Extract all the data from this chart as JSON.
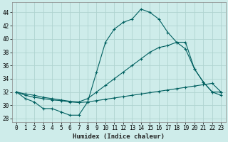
{
  "xlabel": "Humidex (Indice chaleur)",
  "bg_color": "#ceecea",
  "grid_color": "#b0d4d0",
  "line_color": "#006060",
  "xlim": [
    -0.5,
    23.5
  ],
  "ylim": [
    27.5,
    45.5
  ],
  "xticks": [
    0,
    1,
    2,
    3,
    4,
    5,
    6,
    7,
    8,
    9,
    10,
    11,
    12,
    13,
    14,
    15,
    16,
    17,
    18,
    19,
    20,
    21,
    22,
    23
  ],
  "yticks": [
    28,
    30,
    32,
    34,
    36,
    38,
    40,
    42,
    44
  ],
  "series1_x": [
    0,
    1,
    2,
    3,
    4,
    5,
    6,
    7,
    8,
    9,
    10,
    11,
    12,
    13,
    14,
    15,
    16,
    17,
    18,
    19,
    20,
    21,
    22,
    23
  ],
  "series1_y": [
    32,
    31,
    30.5,
    29.5,
    29.5,
    29,
    28.5,
    28.5,
    30.5,
    35,
    39.5,
    41.5,
    42.5,
    43,
    44.5,
    44,
    43,
    41,
    39.5,
    38.5,
    35.5,
    33.5,
    32,
    31.5
  ],
  "series2_x": [
    0,
    1,
    2,
    3,
    4,
    5,
    6,
    7,
    8,
    9,
    10,
    11,
    12,
    13,
    14,
    15,
    16,
    17,
    18,
    19,
    20,
    21,
    22,
    23
  ],
  "series2_y": [
    32,
    31.5,
    31.2,
    31.0,
    30.8,
    30.7,
    30.5,
    30.4,
    30.5,
    30.7,
    30.9,
    31.1,
    31.3,
    31.5,
    31.7,
    31.9,
    32.1,
    32.3,
    32.5,
    32.7,
    32.9,
    33.1,
    33.3,
    32
  ],
  "series3_x": [
    0,
    1,
    2,
    3,
    4,
    5,
    6,
    7,
    8,
    9,
    10,
    11,
    12,
    13,
    14,
    15,
    16,
    17,
    18,
    19,
    20,
    21,
    22,
    23
  ],
  "series3_y": [
    32,
    31.7,
    31.5,
    31.2,
    31.0,
    30.8,
    30.6,
    30.5,
    31.0,
    32.0,
    33.0,
    34.0,
    35.0,
    36.0,
    37.0,
    38.0,
    38.7,
    39.0,
    39.5,
    39.5,
    35.5,
    33.5,
    32,
    32
  ]
}
